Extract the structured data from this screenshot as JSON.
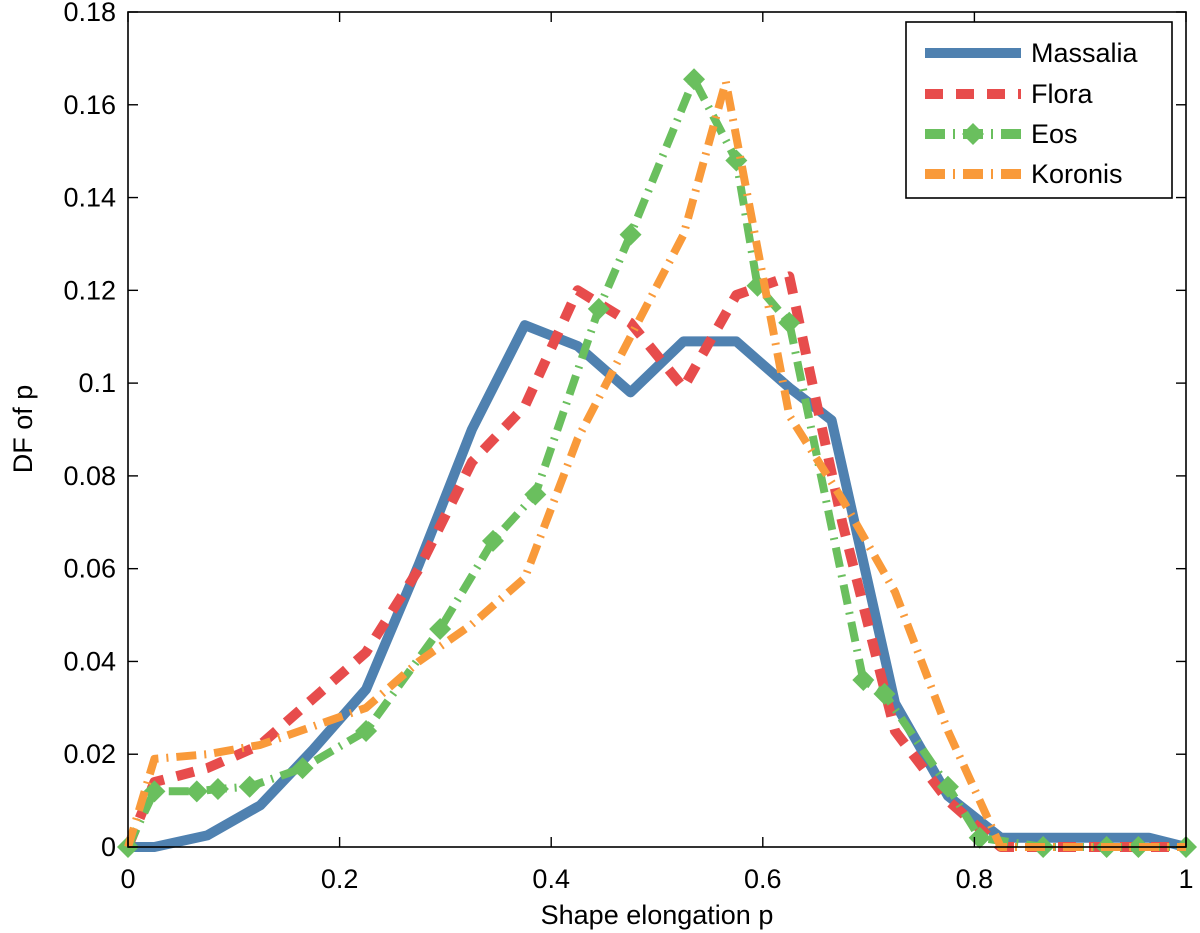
{
  "chart_data": {
    "type": "line",
    "title": "",
    "xlabel": "Shape elongation p",
    "ylabel": "DF of p",
    "xlim": [
      0,
      1
    ],
    "ylim": [
      0,
      0.18
    ],
    "xticks": [
      0,
      0.2,
      0.4,
      0.6,
      0.8,
      1
    ],
    "xtick_labels": [
      "0",
      "0.2",
      "0.4",
      "0.6",
      "0.8",
      "1"
    ],
    "yticks": [
      0,
      0.02,
      0.04,
      0.06,
      0.08,
      0.1,
      0.12,
      0.14,
      0.16,
      0.18
    ],
    "ytick_labels": [
      "0",
      "0.02",
      "0.04",
      "0.06",
      "0.08",
      "0.1",
      "0.12",
      "0.14",
      "0.16",
      "0.18"
    ],
    "grid": false,
    "legend_position": "top-right",
    "series": [
      {
        "name": "Massalia",
        "color": "#4f81b0",
        "style": "solid",
        "x": [
          0,
          0.025,
          0.075,
          0.125,
          0.175,
          0.225,
          0.275,
          0.325,
          0.375,
          0.425,
          0.475,
          0.525,
          0.575,
          0.625,
          0.665,
          0.725,
          0.775,
          0.825,
          0.875,
          0.925,
          0.965,
          1.0
        ],
        "y": [
          0,
          0,
          0.0025,
          0.009,
          0.021,
          0.034,
          0.061,
          0.09,
          0.1125,
          0.108,
          0.098,
          0.109,
          0.109,
          0.099,
          0.092,
          0.031,
          0.011,
          0.002,
          0.002,
          0.002,
          0.002,
          0
        ]
      },
      {
        "name": "Flora",
        "color": "#e74c4c",
        "style": "dashed",
        "x": [
          0,
          0.025,
          0.075,
          0.125,
          0.175,
          0.225,
          0.275,
          0.325,
          0.375,
          0.425,
          0.475,
          0.525,
          0.575,
          0.625,
          0.675,
          0.725,
          0.775,
          0.825,
          0.875,
          0.925,
          0.975,
          1.0
        ],
        "y": [
          0,
          0.014,
          0.017,
          0.022,
          0.032,
          0.042,
          0.06,
          0.083,
          0.095,
          0.12,
          0.113,
          0.099,
          0.119,
          0.123,
          0.07,
          0.025,
          0.01,
          0,
          0,
          0,
          0,
          0
        ]
      },
      {
        "name": "Eos",
        "color": "#6abf5e",
        "style": "dash-dot-diamond",
        "x": [
          0,
          0.025,
          0.065,
          0.085,
          0.115,
          0.165,
          0.225,
          0.295,
          0.345,
          0.385,
          0.445,
          0.475,
          0.535,
          0.575,
          0.595,
          0.625,
          0.695,
          0.715,
          0.775,
          0.805,
          0.865,
          0.925,
          0.955,
          1.0
        ],
        "y": [
          0,
          0.012,
          0.012,
          0.0125,
          0.013,
          0.017,
          0.025,
          0.047,
          0.066,
          0.076,
          0.116,
          0.132,
          0.1655,
          0.148,
          0.121,
          0.113,
          0.036,
          0.033,
          0.013,
          0.002,
          0,
          0,
          0,
          0
        ]
      },
      {
        "name": "Koronis",
        "color": "#f99a3a",
        "style": "dash-dot",
        "x": [
          0,
          0.025,
          0.075,
          0.125,
          0.175,
          0.225,
          0.275,
          0.325,
          0.375,
          0.425,
          0.475,
          0.525,
          0.565,
          0.625,
          0.675,
          0.725,
          0.775,
          0.825,
          0.875,
          0.925,
          0.975,
          1.0
        ],
        "y": [
          0,
          0.019,
          0.02,
          0.022,
          0.026,
          0.03,
          0.04,
          0.048,
          0.058,
          0.088,
          0.11,
          0.132,
          0.165,
          0.093,
          0.075,
          0.055,
          0.025,
          0,
          0,
          0,
          0,
          0
        ]
      }
    ]
  }
}
